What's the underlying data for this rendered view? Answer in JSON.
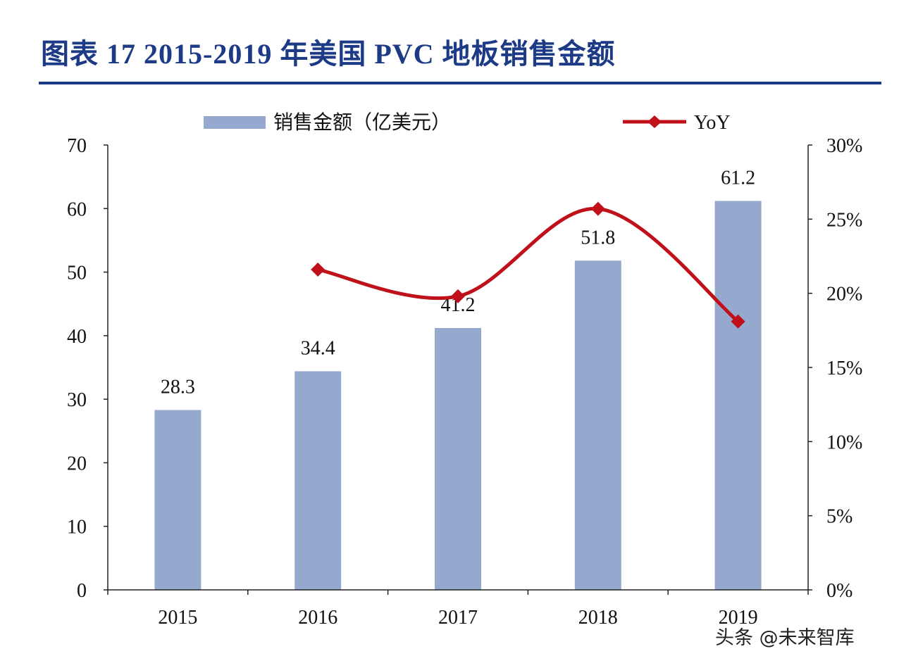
{
  "title": "图表 17  2015-2019 年美国 PVC 地板销售金额",
  "watermark": "头条 @未来智库",
  "chart_data": {
    "type": "bar+line",
    "categories": [
      "2015",
      "2016",
      "2017",
      "2018",
      "2019"
    ],
    "series": [
      {
        "name": "销售金额（亿美元）",
        "type": "bar",
        "axis": "left",
        "color": "#95a8cd",
        "values": [
          28.3,
          34.4,
          41.2,
          51.8,
          61.2
        ],
        "data_labels": [
          "28.3",
          "34.4",
          "41.2",
          "51.8",
          "61.2"
        ]
      },
      {
        "name": "YoY",
        "type": "line",
        "axis": "right",
        "color": "#c0111a",
        "marker": "diamond",
        "smooth": true,
        "values": [
          null,
          21.6,
          19.8,
          25.7,
          18.1
        ]
      }
    ],
    "ylim_left": [
      0,
      70
    ],
    "yticks_left": [
      "0",
      "10",
      "20",
      "30",
      "40",
      "50",
      "60",
      "70"
    ],
    "ylim_right": [
      0,
      30
    ],
    "yticks_right": [
      "0%",
      "5%",
      "10%",
      "15%",
      "20%",
      "25%",
      "30%"
    ],
    "legend": "top",
    "grid": false
  }
}
